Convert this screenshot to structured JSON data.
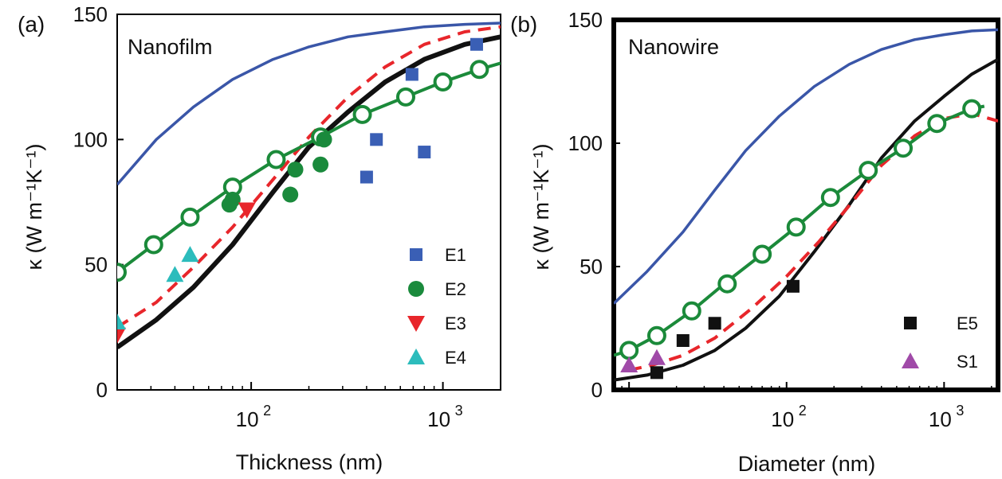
{
  "colors": {
    "blue": "#3a56a8",
    "black": "#111111",
    "red_dashed": "#e8262b",
    "green": "#1b8a3a",
    "marker_blue": "#3a5fb5",
    "marker_green": "#1a8a3c",
    "marker_red": "#e8262b",
    "marker_cyan": "#2cbcbc",
    "marker_black": "#111111",
    "marker_purple": "#a04aa8"
  },
  "chart_data": [
    {
      "type": "line",
      "panel_letter": "(a)",
      "panel_title": "Nanofilm",
      "xlabel": "Thickness (nm)",
      "ylabel": "κ (W m⁻¹K⁻¹)",
      "xscale": "log",
      "xlim": [
        20,
        2000
      ],
      "ylim": [
        0,
        150
      ],
      "frame": "normal",
      "y_ticks": [
        0,
        50,
        100,
        150
      ],
      "x_ticks": [
        {
          "value": 100,
          "base": "10",
          "exp": "2"
        },
        {
          "value": 1000,
          "base": "10",
          "exp": "3"
        }
      ],
      "legend_position": "bottom-right",
      "series": [
        {
          "style": "blue",
          "points": [
            [
              20,
              82
            ],
            [
              32,
              100
            ],
            [
              50,
              113
            ],
            [
              80,
              124
            ],
            [
              130,
              132
            ],
            [
              200,
              137
            ],
            [
              320,
              141
            ],
            [
              500,
              143
            ],
            [
              800,
              145
            ],
            [
              1300,
              146
            ],
            [
              2000,
              146.5
            ]
          ]
        },
        {
          "style": "black",
          "points": [
            [
              20,
              17
            ],
            [
              32,
              28
            ],
            [
              50,
              41
            ],
            [
              80,
              58
            ],
            [
              130,
              79
            ],
            [
              200,
              97
            ],
            [
              320,
              111
            ],
            [
              500,
              123
            ],
            [
              800,
              132
            ],
            [
              1300,
              138
            ],
            [
              2000,
              141
            ]
          ]
        },
        {
          "style": "red_dashed",
          "points": [
            [
              20,
              25
            ],
            [
              32,
              35
            ],
            [
              50,
              49
            ],
            [
              80,
              65
            ],
            [
              130,
              84
            ],
            [
              200,
              101
            ],
            [
              320,
              117
            ],
            [
              500,
              129
            ],
            [
              800,
              138
            ],
            [
              1300,
              143
            ],
            [
              2000,
              145
            ]
          ]
        },
        {
          "style": "green",
          "points": [
            [
              20,
              47
            ],
            [
              31,
              58
            ],
            [
              48,
              69
            ],
            [
              80,
              81
            ],
            [
              135,
              92
            ],
            [
              230,
              101
            ],
            [
              380,
              110
            ],
            [
              640,
              117
            ],
            [
              1000,
              123
            ],
            [
              1550,
              128
            ],
            [
              2000,
              130.5
            ]
          ]
        }
      ],
      "scatter": [
        {
          "name": "E1",
          "marker": "square",
          "color_key": "marker_blue",
          "points": [
            [
              400,
              85
            ],
            [
              450,
              100
            ],
            [
              690,
              126
            ],
            [
              800,
              95
            ],
            [
              1500,
              138
            ]
          ]
        },
        {
          "name": "E2",
          "marker": "circle",
          "color_key": "marker_green",
          "points": [
            [
              77,
              74
            ],
            [
              80,
              76
            ],
            [
              160,
              78
            ],
            [
              170,
              88
            ],
            [
              230,
              90
            ],
            [
              240,
              100
            ]
          ]
        },
        {
          "name": "E3",
          "marker": "triangle-down",
          "color_key": "marker_red",
          "points": [
            [
              20,
              22
            ],
            [
              95,
              72
            ]
          ]
        },
        {
          "name": "E4",
          "marker": "triangle-up",
          "color_key": "marker_cyan",
          "points": [
            [
              20,
              27
            ],
            [
              40,
              46
            ],
            [
              48,
              54
            ]
          ]
        }
      ],
      "green_circle_points": [
        [
          20,
          47
        ],
        [
          31,
          58
        ],
        [
          48,
          69
        ],
        [
          80,
          81
        ],
        [
          135,
          92
        ],
        [
          230,
          101
        ],
        [
          380,
          110
        ],
        [
          640,
          117
        ],
        [
          1000,
          123
        ],
        [
          1550,
          128
        ]
      ]
    },
    {
      "type": "line",
      "panel_letter": "(b)",
      "panel_title": "Nanowire",
      "xlabel": "Diameter (nm)",
      "ylabel": "κ (W m⁻¹K⁻¹)",
      "xscale": "log",
      "xlim": [
        8,
        2200
      ],
      "ylim": [
        0,
        150
      ],
      "frame": "heavy",
      "y_ticks": [
        0,
        50,
        100,
        150
      ],
      "x_ticks": [
        {
          "value": 100,
          "base": "10",
          "exp": "2"
        },
        {
          "value": 1000,
          "base": "10",
          "exp": "3"
        }
      ],
      "legend_position": "bottom-right",
      "series": [
        {
          "style": "blue",
          "points": [
            [
              8,
              35
            ],
            [
              13,
              48
            ],
            [
              22,
              64
            ],
            [
              35,
              81
            ],
            [
              55,
              97
            ],
            [
              90,
              111
            ],
            [
              150,
              123
            ],
            [
              250,
              132
            ],
            [
              400,
              138
            ],
            [
              650,
              142
            ],
            [
              1000,
              144
            ],
            [
              1500,
              145.5
            ],
            [
              2200,
              146
            ]
          ]
        },
        {
          "style": "black",
          "points": [
            [
              8,
              4
            ],
            [
              13,
              6
            ],
            [
              22,
              10
            ],
            [
              35,
              16
            ],
            [
              55,
              25
            ],
            [
              90,
              38
            ],
            [
              150,
              56
            ],
            [
              250,
              75
            ],
            [
              400,
              94
            ],
            [
              650,
              109
            ],
            [
              1000,
              119
            ],
            [
              1500,
              128
            ],
            [
              2200,
              134
            ]
          ]
        },
        {
          "style": "red_dashed",
          "points": [
            [
              10,
              8
            ],
            [
              14,
              10
            ],
            [
              22,
              14
            ],
            [
              35,
              21
            ],
            [
              60,
              33
            ],
            [
              100,
              46
            ],
            [
              160,
              60
            ],
            [
              260,
              76
            ],
            [
              400,
              91
            ],
            [
              650,
              103
            ],
            [
              1000,
              110
            ],
            [
              1500,
              112
            ],
            [
              2200,
              109
            ]
          ]
        },
        {
          "style": "green",
          "points": [
            [
              8,
              14
            ],
            [
              10,
              16
            ],
            [
              15,
              22
            ],
            [
              25,
              32
            ],
            [
              42,
              44
            ],
            [
              70,
              55
            ],
            [
              115,
              66
            ],
            [
              190,
              78
            ],
            [
              330,
              89
            ],
            [
              550,
              98
            ],
            [
              900,
              108
            ],
            [
              1500,
              114
            ],
            [
              1800,
              115
            ]
          ]
        }
      ],
      "scatter": [
        {
          "name": "E5",
          "marker": "square",
          "color_key": "marker_black",
          "points": [
            [
              15,
              7
            ],
            [
              22,
              20
            ],
            [
              35,
              27
            ],
            [
              110,
              42
            ]
          ]
        },
        {
          "name": "S1",
          "marker": "triangle-up",
          "color_key": "marker_purple",
          "points": [
            [
              10,
              10
            ],
            [
              15,
              13
            ]
          ]
        }
      ],
      "green_circle_points": [
        [
          10,
          16
        ],
        [
          15,
          22
        ],
        [
          25,
          32
        ],
        [
          42,
          43
        ],
        [
          70,
          55
        ],
        [
          115,
          66
        ],
        [
          190,
          78
        ],
        [
          330,
          89
        ],
        [
          550,
          98
        ],
        [
          900,
          108
        ],
        [
          1500,
          114
        ]
      ]
    }
  ]
}
